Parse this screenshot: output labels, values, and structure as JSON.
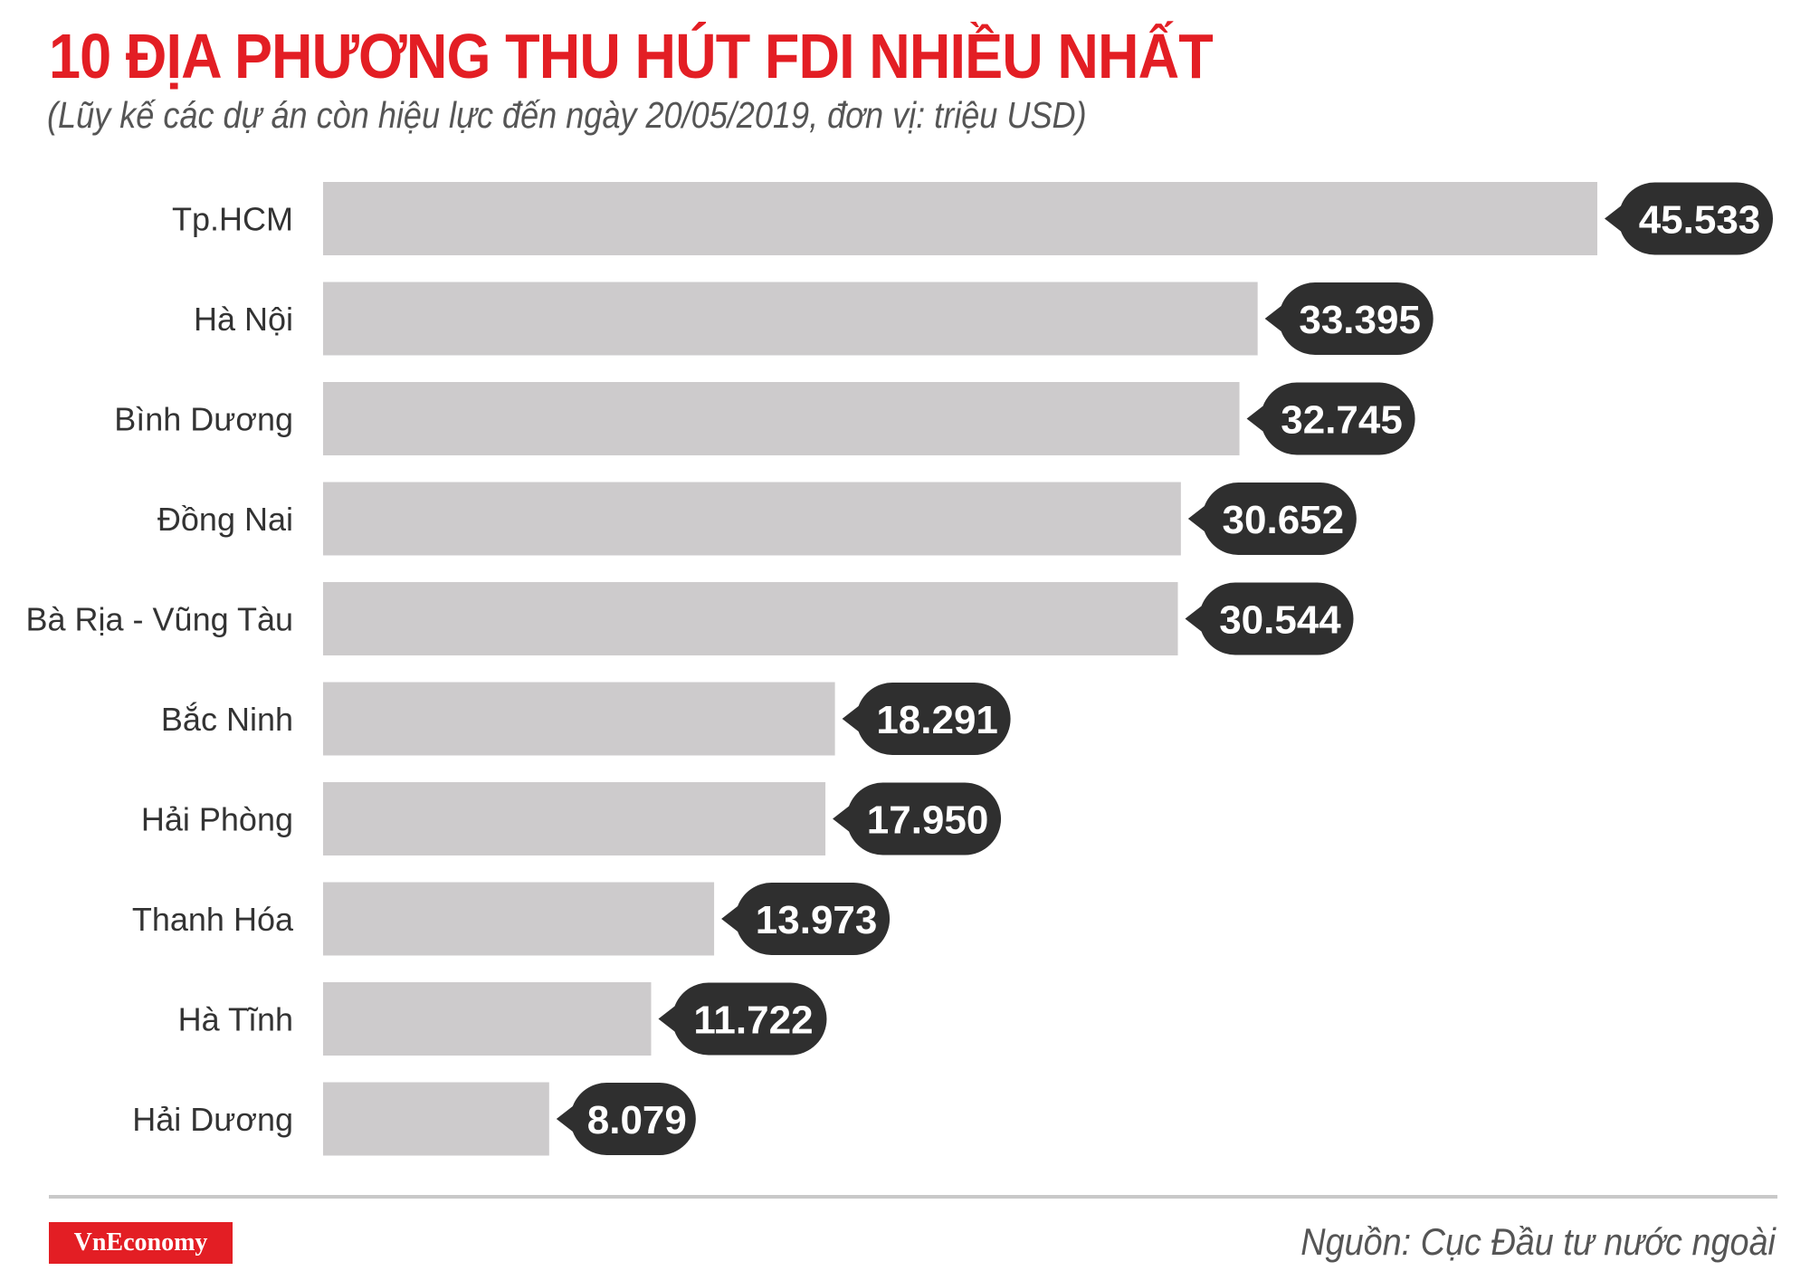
{
  "header": {
    "title": "10 ĐỊA PHƯƠNG THU HÚT FDI NHIỀU NHẤT",
    "subtitle": "(Lũy kế các dự án còn hiệu lực đến ngày 20/05/2019, đơn vị: triệu USD)"
  },
  "chart_data": {
    "type": "bar",
    "orientation": "horizontal",
    "categories": [
      "Tp.HCM",
      "Hà Nội",
      "Bình Dương",
      "Đồng Nai",
      "Bà Rịa - Vũng Tàu",
      "Bắc Ninh",
      "Hải Phòng",
      "Thanh Hóa",
      "Hà Tĩnh",
      "Hải Dương"
    ],
    "values": [
      45533,
      33395,
      32745,
      30652,
      30544,
      18291,
      17950,
      13973,
      11722,
      8079
    ],
    "value_labels": [
      "45.533",
      "33.395",
      "32.745",
      "30.652",
      "30.544",
      "18.291",
      "17.950",
      "13.973",
      "11.722",
      "8.079"
    ],
    "title": "10 ĐỊA PHƯƠNG THU HÚT FDI NHIỀU NHẤT",
    "subtitle": "(Lũy kế các dự án còn hiệu lực đến ngày 20/05/2019, đơn vị: triệu USD)",
    "grid": false,
    "legend": "none",
    "colors": {
      "bar": "#cdcbcc",
      "label_bubble": "#2f2f2f",
      "title": "#e31e24"
    }
  },
  "footer": {
    "logo": "VnEconomy",
    "source": "Nguồn: Cục Đầu tư nước ngoài"
  }
}
